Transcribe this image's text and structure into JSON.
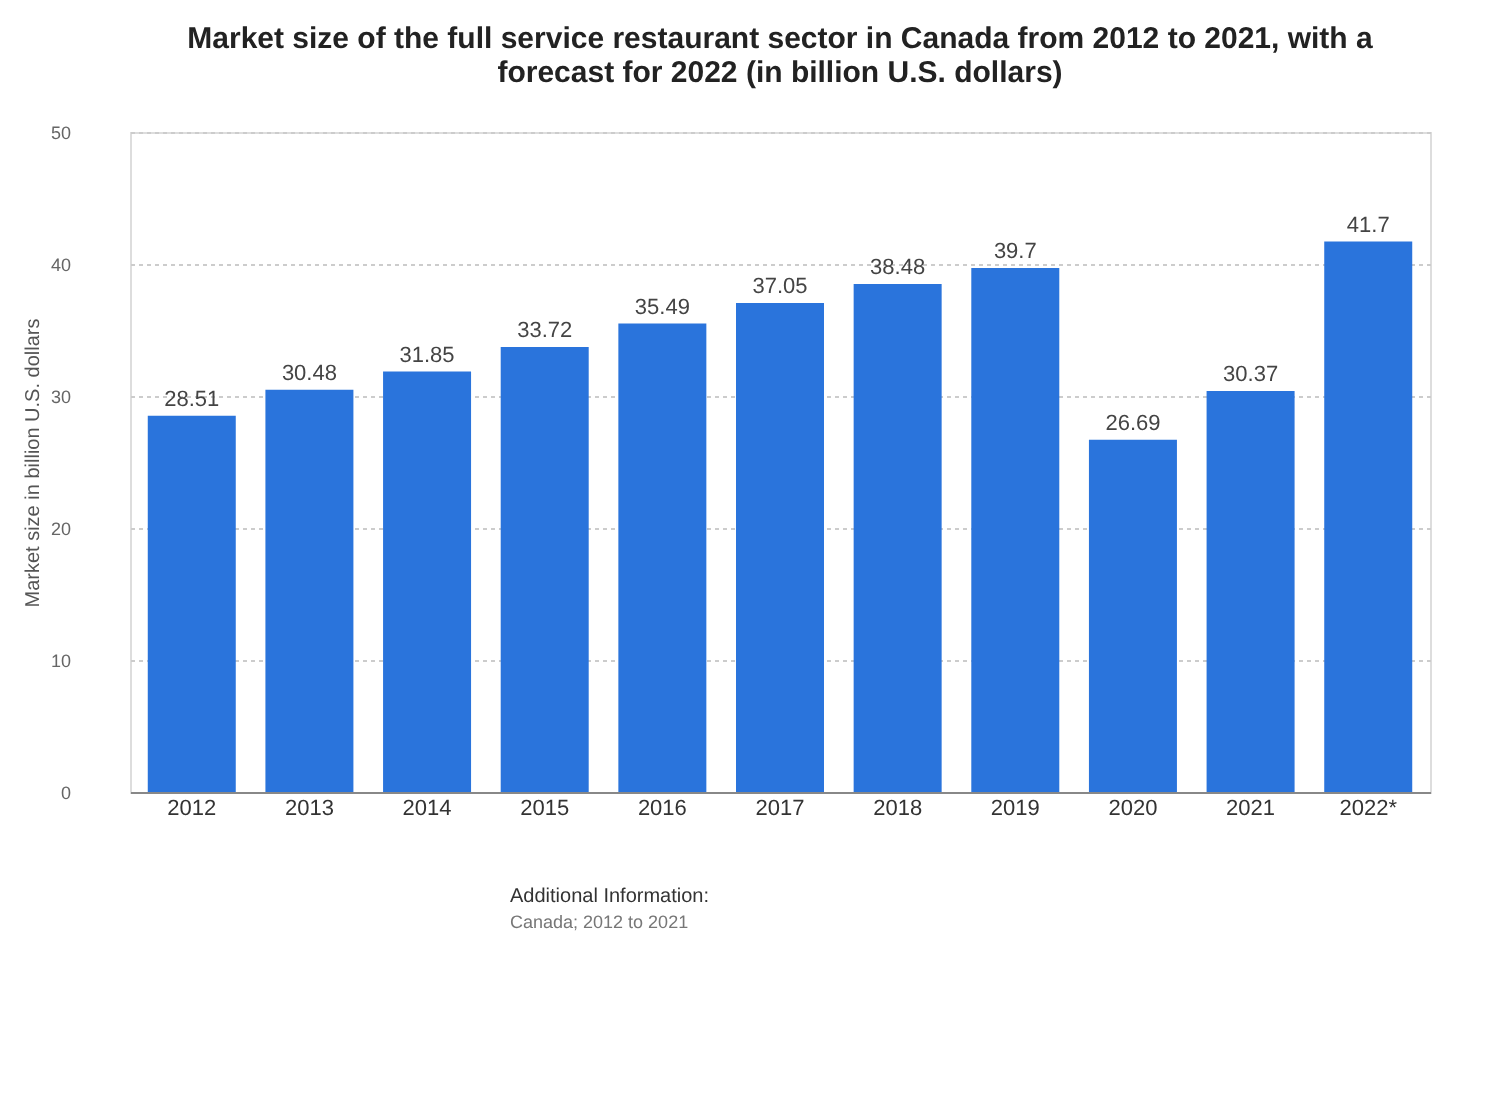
{
  "chart_data": {
    "type": "bar",
    "title": "Market size of the full service restaurant sector in Canada from 2012 to 2021, with a forecast for 2022 (in billion U.S. dollars)",
    "ylabel": "Market size in billion U.S. dollars",
    "categories": [
      "2012",
      "2013",
      "2014",
      "2015",
      "2016",
      "2017",
      "2018",
      "2019",
      "2020",
      "2021",
      "2022*"
    ],
    "values": [
      28.51,
      30.48,
      31.85,
      33.72,
      35.49,
      37.05,
      38.48,
      39.7,
      26.69,
      30.37,
      41.7
    ],
    "color": "#2a74dc",
    "ylim": [
      0,
      50
    ],
    "yticks": [
      0,
      10,
      20,
      30,
      40,
      50
    ],
    "grid": "y",
    "data_labels": true,
    "annotations": [
      "Additional Information:",
      "Canada; 2012 to 2021"
    ]
  }
}
